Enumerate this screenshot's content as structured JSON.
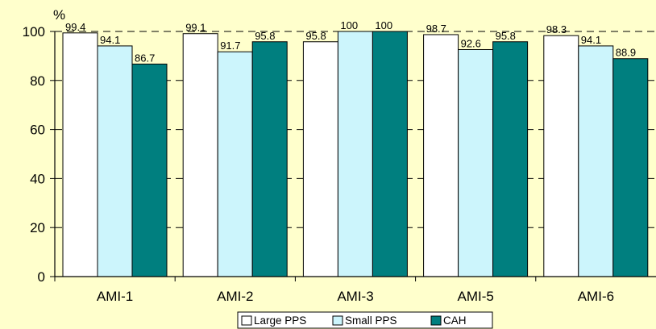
{
  "chart_data": {
    "type": "bar",
    "y_unit": "%",
    "ylim": [
      0,
      100
    ],
    "yticks": [
      0,
      20,
      40,
      60,
      80,
      100
    ],
    "grid": "dashed horizontal, between bar groups",
    "legend_position": "bottom-center",
    "categories": [
      "AMI-1",
      "AMI-2",
      "AMI-3",
      "AMI-5",
      "AMI-6"
    ],
    "series": [
      {
        "name": "Large PPS",
        "color": "#ffffff",
        "values": [
          99.4,
          99.1,
          95.8,
          98.7,
          98.3
        ],
        "labels": [
          "99.4",
          "99.1",
          "95.8",
          "98.7",
          "98.3"
        ]
      },
      {
        "name": "Small PPS",
        "color": "#ccf5fc",
        "values": [
          94.1,
          91.7,
          100,
          92.6,
          94.1
        ],
        "labels": [
          "94.1",
          "91.7",
          "100",
          "92.6",
          "94.1"
        ]
      },
      {
        "name": "CAH",
        "color": "#007f7f",
        "values": [
          86.7,
          95.8,
          100,
          95.8,
          88.9
        ],
        "labels": [
          "86.7",
          "95.8",
          "100",
          "95.8",
          "88.9"
        ]
      }
    ]
  }
}
